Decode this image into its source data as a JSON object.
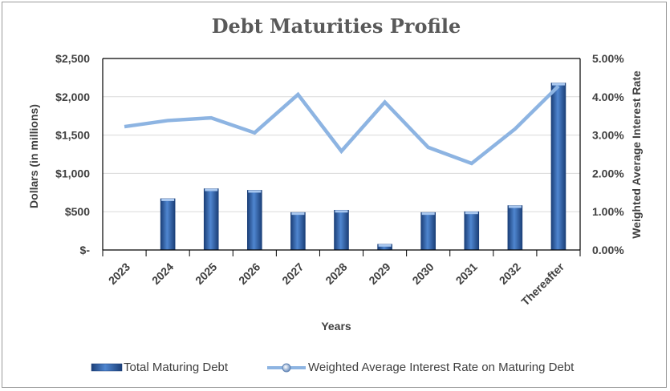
{
  "chart_data": {
    "type": "bar-line",
    "title": "Debt Maturities Profile",
    "xlabel": "Years",
    "ylabel": "Dollars (in millions)",
    "y2label": "Weighted Average Interest Rate",
    "categories": [
      "2023",
      "2024",
      "2025",
      "2026",
      "2027",
      "2028",
      "2029",
      "2030",
      "2031",
      "2032",
      "Thereafter"
    ],
    "ylim": [
      0,
      2500
    ],
    "y_ticks": [
      0,
      500,
      1000,
      1500,
      2000,
      2500
    ],
    "y_tick_labels": [
      "$-",
      "$500",
      "$1,000",
      "$1,500",
      "$2,000",
      "$2,500"
    ],
    "y2lim": [
      0,
      5
    ],
    "y2_ticks": [
      0,
      1,
      2,
      3,
      4,
      5
    ],
    "y2_tick_labels": [
      "0.00%",
      "1.00%",
      "2.00%",
      "3.00%",
      "4.00%",
      "5.00%"
    ],
    "series": [
      {
        "name": "Total Maturing Debt",
        "type": "bar",
        "axis": "left",
        "color": "#2e5fa8",
        "values": [
          0,
          670,
          800,
          780,
          490,
          520,
          75,
          490,
          500,
          580,
          2180
        ]
      },
      {
        "name": "Weighted Average Interest Rate on Maturing Debt",
        "type": "line",
        "axis": "right",
        "color": "#8db4e2",
        "values": [
          3.22,
          3.38,
          3.45,
          3.06,
          4.06,
          2.58,
          3.86,
          2.68,
          2.26,
          3.16,
          4.28
        ]
      }
    ],
    "grid": true,
    "legend": "bottom"
  }
}
